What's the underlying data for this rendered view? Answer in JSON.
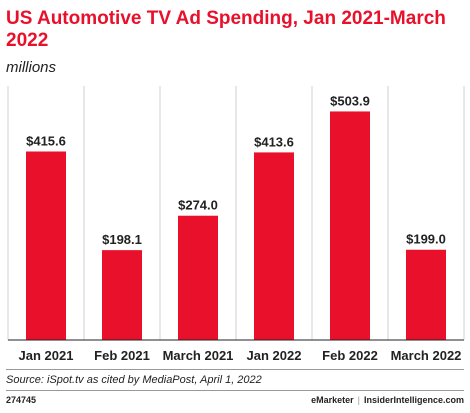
{
  "chart_data": {
    "type": "bar",
    "title": "US Automotive TV Ad Spending, Jan 2021-March 2022",
    "subtitle": "millions",
    "categories": [
      "Jan 2021",
      "Feb 2021",
      "March 2021",
      "Jan 2022",
      "Feb 2022",
      "March 2022"
    ],
    "values": [
      415.6,
      198.1,
      274.0,
      413.6,
      503.9,
      199.0
    ],
    "value_labels": [
      "$415.6",
      "$198.1",
      "$274.0",
      "$413.6",
      "$503.9",
      "$199.0"
    ],
    "ylim": [
      0,
      560
    ],
    "bar_color": "#e8102b",
    "grid": false,
    "legend": false
  },
  "footer": {
    "source": "Source: iSpot.tv as cited by MediaPost, April 1, 2022",
    "code": "274745",
    "brand_left": "eMarketer",
    "brand_sep": "|",
    "brand_right": "InsiderIntelligence.com"
  }
}
